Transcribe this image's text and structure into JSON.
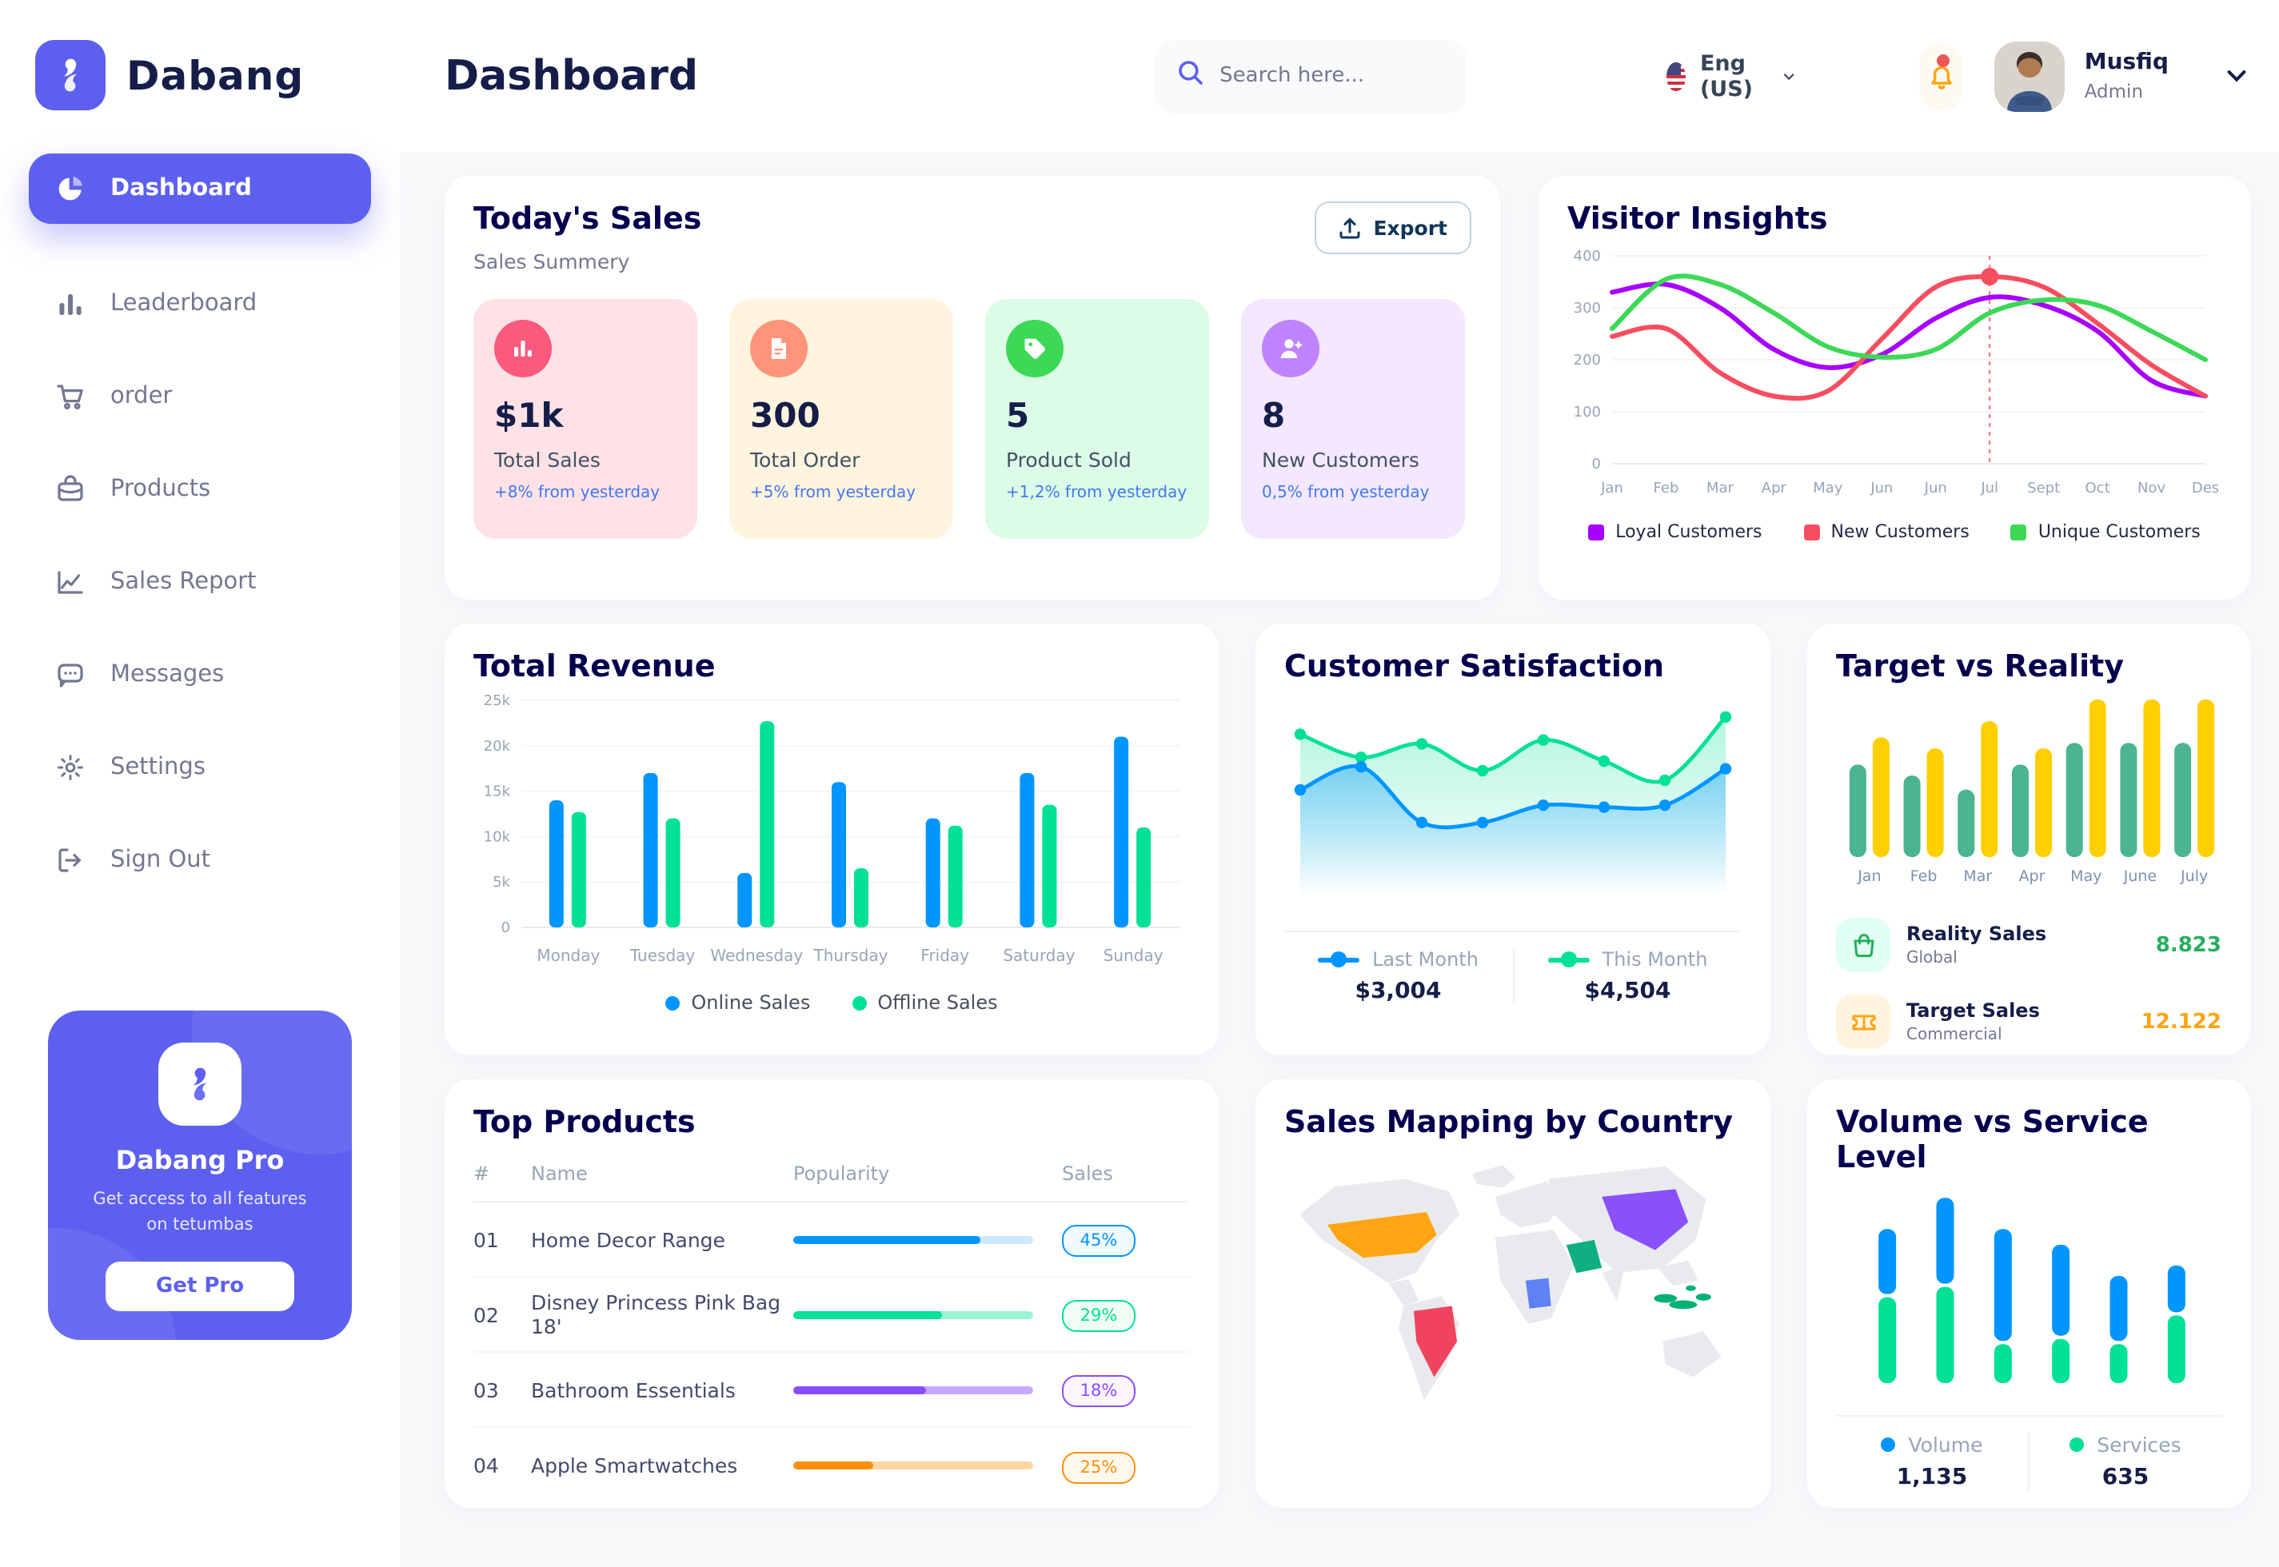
{
  "app": {
    "brand": "Dabang"
  },
  "sidebar": {
    "items": [
      {
        "label": "Dashboard",
        "active": true
      },
      {
        "label": "Leaderboard",
        "active": false
      },
      {
        "label": "order",
        "active": false
      },
      {
        "label": "Products",
        "active": false
      },
      {
        "label": "Sales Report",
        "active": false
      },
      {
        "label": "Messages",
        "active": false
      },
      {
        "label": "Settings",
        "active": false
      },
      {
        "label": "Sign Out",
        "active": false
      }
    ],
    "promo": {
      "title": "Dabang Pro",
      "subtitle": "Get access to all features on tetumbas",
      "cta": "Get Pro"
    }
  },
  "header": {
    "title": "Dashboard",
    "search_placeholder": "Search here...",
    "language": "Eng (US)",
    "user": {
      "name": "Musfiq",
      "role": "Admin"
    }
  },
  "todays_sales": {
    "title": "Today's Sales",
    "subtitle": "Sales Summery",
    "export_label": "Export",
    "stats": [
      {
        "value": "$1k",
        "label": "Total Sales",
        "delta": "+8% from yesterday",
        "bg": "#FFE2E5",
        "icon_bg": "#FA5A7D",
        "icon": "bar-chart"
      },
      {
        "value": "300",
        "label": "Total Order",
        "delta": "+5% from yesterday",
        "bg": "#FFF4DE",
        "icon_bg": "#FF947A",
        "icon": "document"
      },
      {
        "value": "5",
        "label": "Product Sold",
        "delta": "+1,2% from yesterday",
        "bg": "#DCFCE7",
        "icon_bg": "#3CD856",
        "icon": "tag"
      },
      {
        "value": "8",
        "label": "New Customers",
        "delta": "0,5% from yesterday",
        "bg": "#F3E8FF",
        "icon_bg": "#BF83FF",
        "icon": "user-plus"
      }
    ]
  },
  "cards": {
    "visitor_insights": "Visitor Insights",
    "total_revenue": "Total Revenue",
    "customer_satisfaction": "Customer Satisfaction",
    "target_vs_reality": "Target vs Reality",
    "top_products": "Top Products",
    "sales_mapping": "Sales Mapping by Country",
    "volume_service": "Volume vs Service Level"
  },
  "target_vs_reality": {
    "rows": [
      {
        "label": "Reality Sales",
        "sub": "Global",
        "value": "8.823",
        "value_color": "#27AE60",
        "icon_bg": "#E2FFF3",
        "icon": "bag"
      },
      {
        "label": "Target Sales",
        "sub": "Commercial",
        "value": "12.122",
        "value_color": "#FFA412",
        "icon_bg": "#FFF4DE",
        "icon": "ticket"
      }
    ]
  },
  "top_products": {
    "columns": [
      "#",
      "Name",
      "Popularity",
      "Sales"
    ],
    "rows": [
      {
        "num": "01",
        "name": "Home Decor Range",
        "popularity": 78,
        "sales": "45%",
        "color": "#0095FF",
        "track": "#CDE7FF",
        "badge_bg": "#F0F9FF"
      },
      {
        "num": "02",
        "name": "Disney Princess Pink Bag 18'",
        "popularity": 62,
        "sales": "29%",
        "color": "#00E096",
        "track": "#9BF5CE",
        "badge_bg": "#F0FDF4"
      },
      {
        "num": "03",
        "name": "Bathroom Essentials",
        "popularity": 55,
        "sales": "18%",
        "color": "#884DFF",
        "track": "#C5A8FF",
        "badge_bg": "#FBF5FF"
      },
      {
        "num": "04",
        "name": "Apple Smartwatches",
        "popularity": 33,
        "sales": "25%",
        "color": "#FF8F0D",
        "track": "#FFD5A4",
        "badge_bg": "#FFF8EC"
      }
    ]
  },
  "sales_mapping": {
    "countries": [
      {
        "name": "usa",
        "color": "#FFA412"
      },
      {
        "name": "brazil",
        "color": "#F0435F"
      },
      {
        "name": "saudi-arabia",
        "color": "#0FAF82"
      },
      {
        "name": "dr-congo",
        "color": "#5E81F4"
      },
      {
        "name": "china",
        "color": "#8950FC"
      },
      {
        "name": "indonesia",
        "color": "#00B074"
      }
    ]
  },
  "chart_data": {
    "visitor_insights": {
      "type": "line",
      "x": [
        "Jan",
        "Feb",
        "Mar",
        "Apr",
        "May",
        "Jun",
        "Jun",
        "Jul",
        "Sept",
        "Oct",
        "Nov",
        "Des"
      ],
      "ylim": [
        0,
        400
      ],
      "yticks": [
        0,
        100,
        200,
        300,
        400
      ],
      "series": [
        {
          "name": "Loyal Customers",
          "color": "#A700FF",
          "values": [
            330,
            345,
            300,
            220,
            185,
            210,
            280,
            320,
            305,
            255,
            160,
            130
          ]
        },
        {
          "name": "New Customers",
          "color": "#F64E60",
          "values": [
            245,
            260,
            175,
            130,
            140,
            240,
            340,
            360,
            340,
            270,
            190,
            130
          ]
        },
        {
          "name": "Unique Customers",
          "color": "#3CD856",
          "values": [
            260,
            355,
            345,
            290,
            225,
            205,
            220,
            290,
            315,
            305,
            255,
            200
          ]
        }
      ],
      "highlight": {
        "series": "New Customers",
        "index": 7,
        "value": 360
      }
    },
    "total_revenue": {
      "type": "bar",
      "categories": [
        "Monday",
        "Tuesday",
        "Wednesday",
        "Thursday",
        "Friday",
        "Saturday",
        "Sunday"
      ],
      "ylim": [
        0,
        25000
      ],
      "ytick_labels": [
        "0",
        "5k",
        "10k",
        "15k",
        "20k",
        "25k"
      ],
      "series": [
        {
          "name": "Online Sales",
          "color": "#0095FF",
          "values": [
            14000,
            17000,
            6000,
            16000,
            12000,
            17000,
            21000
          ]
        },
        {
          "name": "Offline Sales",
          "color": "#00E096",
          "values": [
            12700,
            12000,
            22700,
            6500,
            11200,
            13500,
            11000
          ]
        }
      ]
    },
    "customer_satisfaction": {
      "type": "area",
      "series": [
        {
          "name": "Last Month",
          "total": "$3,004",
          "color": "#0095FF",
          "values": [
            55,
            67,
            38,
            38,
            47,
            46,
            47,
            66
          ]
        },
        {
          "name": "This Month",
          "total": "$4,504",
          "color": "#00E096",
          "values": [
            84,
            72,
            79,
            65,
            81,
            70,
            60,
            93
          ]
        }
      ]
    },
    "target_vs_reality": {
      "type": "bar",
      "categories": [
        "Jan",
        "Feb",
        "Mar",
        "Apr",
        "May",
        "June",
        "July"
      ],
      "ylim": [
        0,
        15
      ],
      "series": [
        {
          "name": "Reality Sales",
          "color": "#4AB58E",
          "values": [
            8.5,
            7.5,
            6.2,
            8.5,
            10.5,
            10.5,
            10.5
          ]
        },
        {
          "name": "Target Sales",
          "color": "#FFCF00",
          "values": [
            11,
            10,
            12.5,
            10,
            14.5,
            14.5,
            14.5
          ]
        }
      ]
    },
    "volume_vs_service_level": {
      "type": "stacked-bar",
      "ylim": [
        0,
        75
      ],
      "series": [
        {
          "name": "Volume",
          "total": "1,135",
          "color": "#0095FF",
          "values": [
            25,
            33,
            43,
            35,
            25,
            18
          ]
        },
        {
          "name": "Services",
          "total": "635",
          "color": "#00E096",
          "values": [
            33,
            37,
            15,
            17,
            15,
            26
          ]
        }
      ]
    }
  }
}
